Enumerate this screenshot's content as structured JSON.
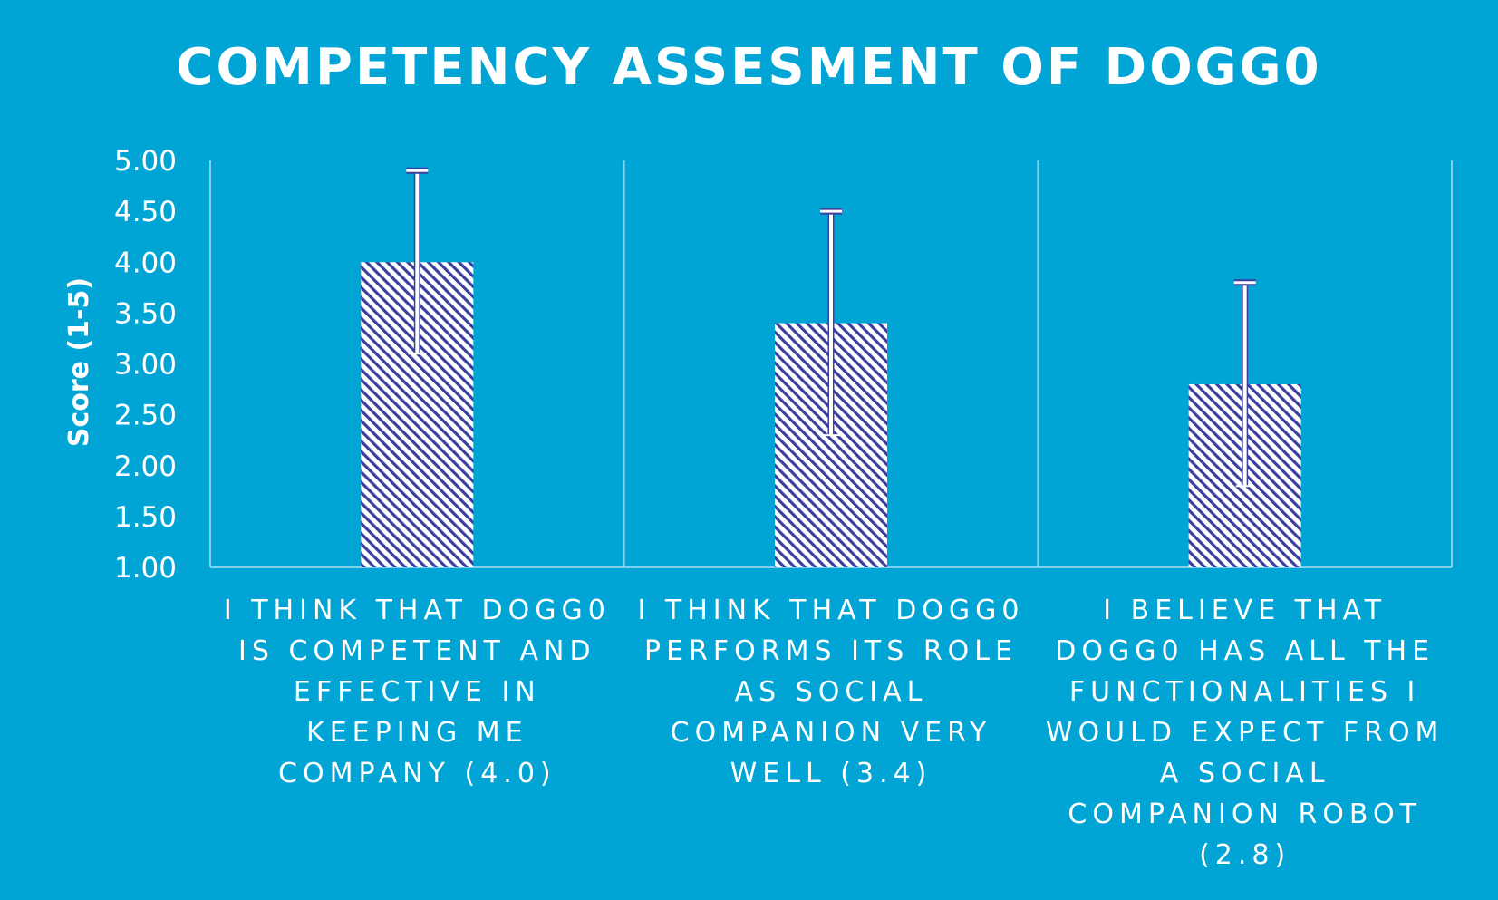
{
  "chart_data": {
    "type": "bar",
    "title": "COMPETENCY ASSESMENT OF DOGG0",
    "xlabel": "",
    "ylabel": "Score (1-5)",
    "ylim": [
      1,
      5
    ],
    "yticks": [
      "1.00",
      "1.50",
      "2.00",
      "2.50",
      "3.00",
      "3.50",
      "4.00",
      "4.50",
      "5.00"
    ],
    "categories": [
      "I THINK THAT DOGG0 IS COMPETENT AND EFFECTIVE IN KEEPING ME COMPANY (4.0)",
      "I THINK THAT DOGG0 PERFORMS ITS ROLE AS SOCIAL COMPANION VERY WELL (3.4)",
      "I BELIEVE THAT DOGG0 HAS ALL THE FUNCTIONALITIES I WOULD EXPECT FROM A SOCIAL COMPANION ROBOT (2.8)"
    ],
    "category_lines": [
      [
        "I THINK THAT DOGG0",
        "IS COMPETENT AND",
        "EFFECTIVE IN",
        "KEEPING ME",
        "COMPANY (4.0)"
      ],
      [
        "I THINK THAT DOGG0",
        "PERFORMS ITS ROLE",
        "AS SOCIAL",
        "COMPANION VERY",
        "WELL (3.4)"
      ],
      [
        "I BELIEVE THAT",
        "DOGG0 HAS ALL THE",
        "FUNCTIONALITIES I",
        "WOULD EXPECT FROM",
        "A SOCIAL",
        "COMPANION ROBOT",
        "(2.8)"
      ]
    ],
    "values": [
      4.0,
      3.4,
      2.8
    ],
    "error": [
      0.9,
      1.1,
      1.0
    ],
    "grid": "vertical category separators",
    "legend": "none",
    "colors": {
      "background": "#00a5d6",
      "bar_fill": "#ffffff",
      "bar_hatch": "#3a3f9e",
      "error_bar": "#ffffff",
      "error_bar_edge": "#3a3f9e",
      "gridline": "#7fd0ea",
      "text": "#ffffff"
    }
  }
}
